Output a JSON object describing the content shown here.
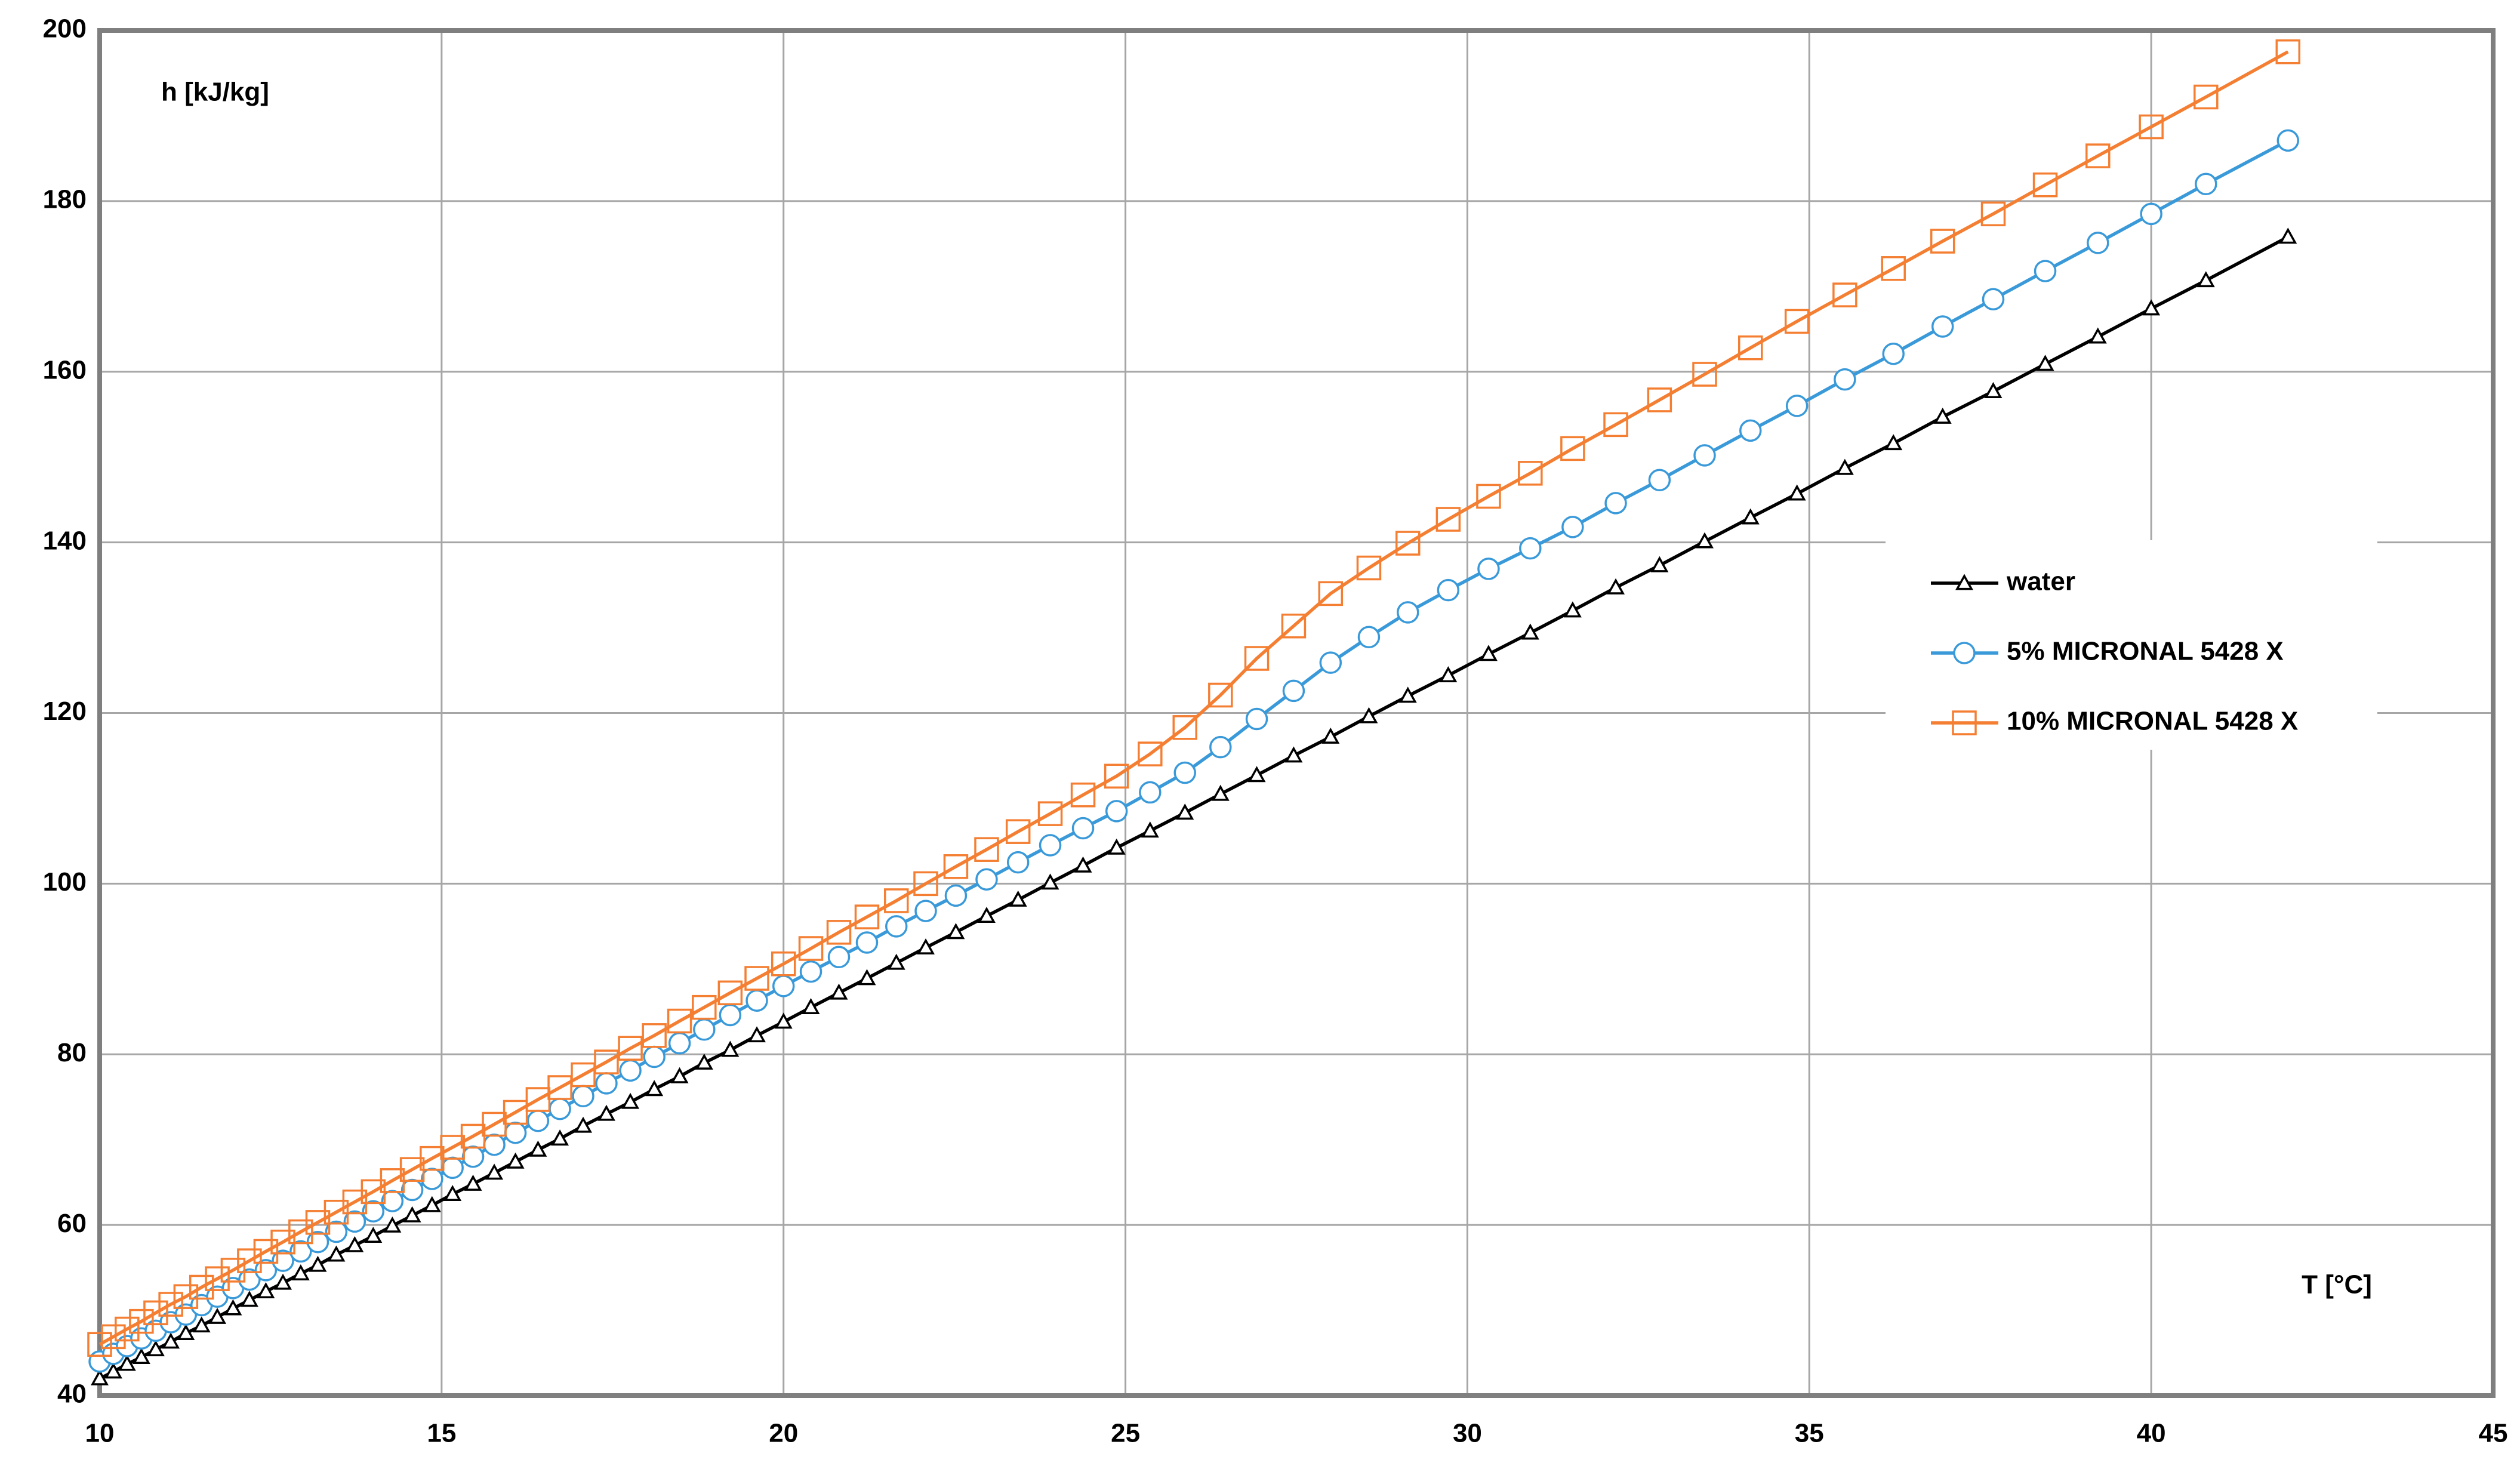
{
  "chart_data": {
    "type": "line",
    "xlabel": "T [°C]",
    "ylabel": "h [kJ/kg]",
    "x": [
      10.0,
      10.2,
      10.4,
      10.61,
      10.82,
      11.04,
      11.26,
      11.49,
      11.72,
      11.95,
      12.19,
      12.43,
      12.68,
      12.94,
      13.19,
      13.46,
      13.73,
      14.0,
      14.28,
      14.57,
      14.86,
      15.16,
      15.46,
      15.77,
      16.08,
      16.41,
      16.73,
      17.07,
      17.41,
      17.76,
      18.11,
      18.48,
      18.84,
      19.22,
      19.61,
      20.0,
      20.4,
      20.81,
      21.22,
      21.65,
      22.08,
      22.52,
      22.97,
      23.43,
      23.9,
      24.38,
      24.87,
      25.36,
      25.87,
      26.39,
      26.92,
      27.46,
      28.0,
      28.56,
      29.13,
      29.72,
      30.31,
      30.92,
      31.54,
      32.17,
      32.81,
      33.47,
      34.14,
      34.82,
      35.52,
      36.23,
      36.95,
      37.69,
      38.45,
      39.22,
      40.0,
      40.8,
      42.0
    ],
    "series": [
      {
        "name": "water",
        "color": "#000000",
        "marker": "triangle",
        "values": [
          42.0,
          42.8,
          43.7,
          44.5,
          45.4,
          46.3,
          47.3,
          48.2,
          49.2,
          50.2,
          51.2,
          52.2,
          53.2,
          54.3,
          55.3,
          56.5,
          57.6,
          58.7,
          59.9,
          61.1,
          62.3,
          63.6,
          64.8,
          66.1,
          67.4,
          68.8,
          70.1,
          71.6,
          73.0,
          74.4,
          75.9,
          77.4,
          79.0,
          80.5,
          82.2,
          83.8,
          85.5,
          87.2,
          88.9,
          90.7,
          92.5,
          94.3,
          96.2,
          98.1,
          100.1,
          102.1,
          104.2,
          106.2,
          108.3,
          110.5,
          112.7,
          115.0,
          117.2,
          119.6,
          122.0,
          124.4,
          126.9,
          129.4,
          132.0,
          134.7,
          137.3,
          140.1,
          142.9,
          145.7,
          148.7,
          151.6,
          154.7,
          157.7,
          160.9,
          164.1,
          167.4,
          170.7,
          175.8
        ]
      },
      {
        "name": "5% MICRONAL 5428 X",
        "color": "#3a9ad9",
        "marker": "circle",
        "values": [
          44.0,
          44.9,
          45.8,
          46.7,
          47.6,
          48.6,
          49.5,
          50.6,
          51.6,
          52.6,
          53.6,
          54.7,
          55.8,
          56.9,
          58.0,
          59.2,
          60.4,
          61.6,
          62.8,
          64.1,
          65.4,
          66.7,
          68.0,
          69.4,
          70.8,
          72.2,
          73.6,
          75.1,
          76.6,
          78.1,
          79.7,
          81.3,
          82.9,
          84.6,
          86.3,
          88.0,
          89.7,
          91.4,
          93.1,
          95.0,
          96.8,
          98.6,
          100.5,
          102.5,
          104.5,
          106.5,
          108.5,
          110.7,
          113.0,
          116.0,
          119.3,
          122.6,
          125.9,
          128.9,
          131.8,
          134.4,
          136.9,
          139.3,
          141.8,
          144.6,
          147.3,
          150.2,
          153.1,
          156.0,
          159.1,
          162.1,
          165.3,
          168.5,
          171.8,
          175.1,
          178.5,
          182.0,
          187.1
        ]
      },
      {
        "name": "10% MICRONAL 5428 X",
        "color": "#f47f33",
        "marker": "square",
        "values": [
          46.0,
          46.9,
          47.8,
          48.7,
          49.7,
          50.7,
          51.6,
          52.7,
          53.7,
          54.7,
          55.8,
          56.9,
          58.0,
          59.2,
          60.3,
          61.5,
          62.7,
          63.9,
          65.2,
          66.5,
          67.8,
          69.1,
          70.4,
          71.8,
          73.2,
          74.7,
          76.1,
          77.6,
          79.1,
          80.7,
          82.2,
          83.9,
          85.5,
          87.2,
          88.9,
          90.6,
          92.4,
          94.3,
          96.1,
          98.0,
          100.0,
          102.0,
          104.0,
          106.1,
          108.2,
          110.4,
          112.6,
          115.2,
          118.3,
          122.1,
          126.4,
          130.2,
          134.0,
          137.0,
          139.9,
          142.7,
          145.4,
          148.1,
          151.0,
          153.8,
          156.7,
          159.7,
          162.8,
          165.9,
          169.0,
          172.1,
          175.3,
          178.5,
          181.9,
          185.3,
          188.7,
          192.2,
          197.5
        ]
      }
    ],
    "xlim": [
      10,
      45
    ],
    "xticks": [
      10,
      15,
      20,
      25,
      30,
      35,
      40,
      45
    ],
    "ylim": [
      40,
      200
    ],
    "yticks": [
      40,
      60,
      80,
      100,
      120,
      140,
      160,
      180,
      200
    ],
    "grid": true,
    "legend": "right"
  }
}
